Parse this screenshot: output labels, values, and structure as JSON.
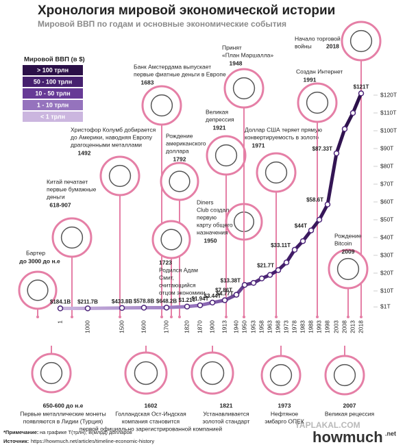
{
  "chart_data": {
    "type": "line",
    "title": "Хронология мировой экономической истории",
    "subtitle": "Мировой ВВП по годам и основные экономические события",
    "categories": [
      "1",
      "1000",
      "1500",
      "1600",
      "1700",
      "1820",
      "1870",
      "1900",
      "1913",
      "1940",
      "1950",
      "1953",
      "1958",
      "1963",
      "1968",
      "1973",
      "1978",
      "1983",
      "1988",
      "1993",
      "1998",
      "2003",
      "2008",
      "2013",
      "2018"
    ],
    "values": [
      0.1841,
      0.2117,
      0.4338,
      0.5788,
      0.6482,
      1.21,
      1.94,
      3.44,
      4.77,
      7.86,
      13.38,
      14.5,
      17,
      19,
      21.7,
      26,
      33.11,
      38,
      44,
      50,
      58.6,
      87.33,
      101,
      110,
      121
    ],
    "value_labels": [
      "$184.1B",
      "$211.7B",
      "$433.8B",
      "$578.8B",
      "$648.2B",
      "$1.21T",
      "$1.94T",
      "$3.44T",
      "$4.77T",
      "$7.86T",
      "$13.38T",
      null,
      null,
      null,
      "$21.7T",
      null,
      "$33.11T",
      null,
      "$44T",
      null,
      "$58.6T",
      "$87.33T",
      null,
      null,
      "$121T"
    ],
    "ylim": [
      0,
      120
    ],
    "yticks": [
      {
        "value": 1,
        "label": "$1T"
      },
      {
        "value": 10,
        "label": "$10T"
      },
      {
        "value": 20,
        "label": "$20T"
      },
      {
        "value": 30,
        "label": "$30T"
      },
      {
        "value": 40,
        "label": "$40T"
      },
      {
        "value": 50,
        "label": "$50T"
      },
      {
        "value": 60,
        "label": "$60T"
      },
      {
        "value": 70,
        "label": "$70T"
      },
      {
        "value": 80,
        "label": "$80T"
      },
      {
        "value": 90,
        "label": "$90T"
      },
      {
        "value": 100,
        "label": "$100T"
      },
      {
        "value": 110,
        "label": "$110T"
      },
      {
        "value": 120,
        "label": "$120T"
      }
    ],
    "legend": {
      "title": "Мировой ВВП (в $)",
      "entries": [
        {
          "label": "> 100 трлн",
          "color": "#2b1048"
        },
        {
          "label": "50 - 100 трлн",
          "color": "#46206f"
        },
        {
          "label": "10 - 50 трлн",
          "color": "#673a96"
        },
        {
          "label": "1 - 10 трлн",
          "color": "#9573bd"
        },
        {
          "label": "< 1 трлн",
          "color": "#cbb6df"
        }
      ]
    },
    "annotations": [
      {
        "text": [
          "Бартер"
        ],
        "year": "до 3000 до н.е"
      },
      {
        "text": [
          "Китай печатает",
          "первые бумажные",
          "деньги"
        ],
        "year": "618-907"
      },
      {
        "text": [
          "Христофор Колумб добирается",
          "до Америки, наводняя Европу",
          "драгоценными металлами"
        ],
        "year": "1492"
      },
      {
        "text": [
          "Банк Амстердама выпускает",
          "первые фиатные деньги в Европе"
        ],
        "year": "1683"
      },
      {
        "text": [
          "Рождение",
          "американского",
          "доллара"
        ],
        "year": "1792"
      },
      {
        "text": [
          "Родился Адам",
          "Смит,",
          "считающийся",
          "отцом экономики"
        ],
        "year": "1723"
      },
      {
        "text": [
          "Великая",
          "депрессия"
        ],
        "year": "1921"
      },
      {
        "text": [
          "Diners",
          "Club создал",
          "первую",
          "карту общего",
          "назначения"
        ],
        "year": "1950"
      },
      {
        "text": [
          "Принят",
          "«План Маршалла»"
        ],
        "year": "1948"
      },
      {
        "text": [
          "Доллар США теряет прямую",
          "конвертируемость в золото"
        ],
        "year": "1971"
      },
      {
        "text": [
          "Создан Интернет"
        ],
        "year": "1991"
      },
      {
        "text": [
          "Начало торговой",
          "войны"
        ],
        "year": "2018"
      },
      {
        "text": [
          "Рождение",
          "Bitcoin"
        ],
        "year": "2009"
      }
    ],
    "bottom_annotations": [
      {
        "year": "650-600 до н.е",
        "text": [
          "Первые металлические монеты",
          "появляются в Лидии (Турция)"
        ]
      },
      {
        "year": "1602",
        "text": [
          "Голландская Ост-Индская",
          "компания становится",
          "первой официально зарегистрированной компанией"
        ]
      },
      {
        "year": "1821",
        "text": [
          "Устанавливается",
          "золотой стандарт"
        ]
      },
      {
        "year": "1973",
        "text": [
          "Нефтяное",
          "эмбарго ОПЕК"
        ]
      },
      {
        "year": "2007",
        "text": [
          "Великая рецессия"
        ]
      }
    ],
    "note_label": "*Примечание:",
    "note": "на графике Т(трлн), В(млрд) долларов",
    "source_label": "Источник:",
    "source": "https://howmuch.net/articles/timeline-economic-history",
    "logo": "howmuch",
    "logo_suffix": ".net",
    "watermark": "YAPLAKAL.COM"
  }
}
